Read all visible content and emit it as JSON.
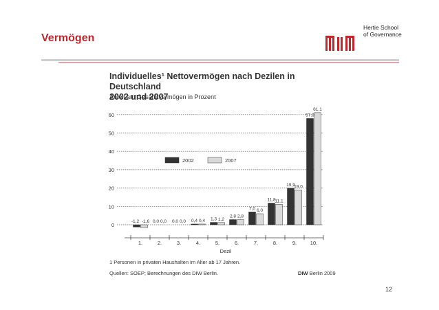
{
  "slide": {
    "title": "Vermögen",
    "logo_line1": "Hertie School",
    "logo_line2": "of Governance",
    "page_number": "12"
  },
  "figure": {
    "title_line1": "Individuelles¹ Nettovermögen nach Dezilen in Deutschland",
    "title_line2": "2002 und 2007",
    "subtitle": "Anteil am Gesamtvermögen in Prozent",
    "footnote": "1  Personen in privaten Haushalten im Alter ab 17 Jahren.",
    "source": "Quellen: SOEP; Berechnungen des DIW Berlin.",
    "source_org": "DIW",
    "source_suffix": "Berlin 2009"
  },
  "colors": {
    "accent": "#c1272d",
    "series_2002": "#333333",
    "series_2007": "#d9d9d9"
  },
  "chart_data": {
    "type": "bar",
    "title": "Individuelles¹ Nettovermögen nach Dezilen in Deutschland 2002 und 2007",
    "subtitle": "Anteil am Gesamtvermögen in Prozent",
    "xlabel": "Dezil",
    "ylabel": "",
    "categories": [
      "1.",
      "2.",
      "3.",
      "4.",
      "5.",
      "6.",
      "7.",
      "8.",
      "9.",
      "10."
    ],
    "series": [
      {
        "name": "2002",
        "values": [
          -1.2,
          0.0,
          0.0,
          0.4,
          1.3,
          2.8,
          7.0,
          11.8,
          19.9,
          57.9
        ],
        "labels": [
          "-1,2",
          "0,0",
          "0,0",
          "0,4",
          "1,3",
          "2,8",
          "7,0",
          "11,8",
          "19,9",
          "57,9"
        ]
      },
      {
        "name": "2007",
        "values": [
          -1.6,
          0.0,
          0.0,
          0.4,
          1.2,
          2.8,
          6.0,
          11.1,
          19.0,
          61.1
        ],
        "labels": [
          "-1,6",
          "0,0",
          "0,0",
          "0,4",
          "1,2",
          "2,8",
          "6,0",
          "11,1",
          "19,0",
          "61,1"
        ]
      }
    ],
    "yticks": [
      0,
      10,
      20,
      30,
      40,
      50,
      60
    ],
    "ylim": [
      -2,
      64
    ],
    "grid": true,
    "legend": "center-left"
  }
}
